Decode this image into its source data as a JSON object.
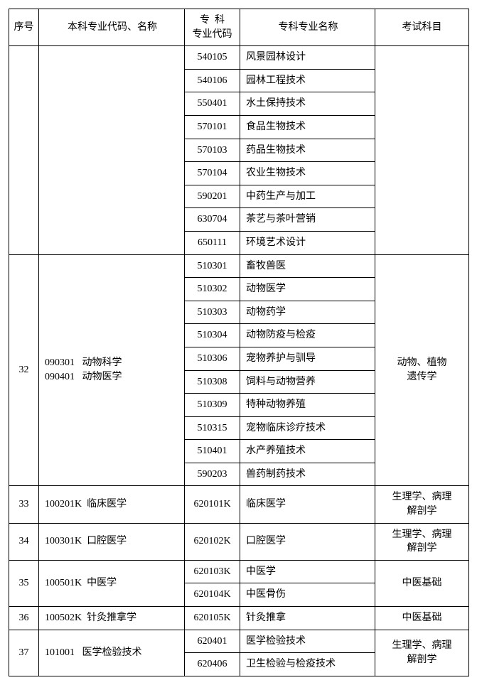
{
  "headers": {
    "seq": "序号",
    "major": "本科专业代码、名称",
    "code": "专  科\n专业代码",
    "name": "专科专业名称",
    "exam": "考试科目"
  },
  "group_top": {
    "rows": [
      {
        "code": "540105",
        "name": "风景园林设计"
      },
      {
        "code": "540106",
        "name": "园林工程技术"
      },
      {
        "code": "550401",
        "name": "水土保持技术"
      },
      {
        "code": "570101",
        "name": "食品生物技术"
      },
      {
        "code": "570103",
        "name": "药品生物技术"
      },
      {
        "code": "570104",
        "name": "农业生物技术"
      },
      {
        "code": "590201",
        "name": "中药生产与加工"
      },
      {
        "code": "630704",
        "name": "茶艺与茶叶营销"
      },
      {
        "code": "650111",
        "name": "环境艺术设计"
      }
    ]
  },
  "group32": {
    "seq": "32",
    "major_line1": "090301   动物科学",
    "major_line2": "090401   动物医学",
    "exam": "动物、植物\n遗传学",
    "rows": [
      {
        "code": "510301",
        "name": "畜牧兽医"
      },
      {
        "code": "510302",
        "name": "动物医学"
      },
      {
        "code": "510303",
        "name": "动物药学"
      },
      {
        "code": "510304",
        "name": "动物防疫与检疫"
      },
      {
        "code": "510306",
        "name": "宠物养护与驯导"
      },
      {
        "code": "510308",
        "name": "饲料与动物营养"
      },
      {
        "code": "510309",
        "name": "特种动物养殖"
      },
      {
        "code": "510315",
        "name": "宠物临床诊疗技术"
      },
      {
        "code": "510401",
        "name": "水产养殖技术"
      },
      {
        "code": "590203",
        "name": "兽药制药技术"
      }
    ]
  },
  "group33": {
    "seq": "33",
    "major": "100201K  临床医学",
    "exam": "生理学、病理\n解剖学",
    "rows": [
      {
        "code": "620101K",
        "name": "临床医学"
      }
    ]
  },
  "group34": {
    "seq": "34",
    "major": "100301K  口腔医学",
    "exam": "生理学、病理\n解剖学",
    "rows": [
      {
        "code": "620102K",
        "name": "口腔医学"
      }
    ]
  },
  "group35": {
    "seq": "35",
    "major": "100501K  中医学",
    "exam": "中医基础",
    "rows": [
      {
        "code": "620103K",
        "name": "中医学"
      },
      {
        "code": "620104K",
        "name": "中医骨伤"
      }
    ]
  },
  "group36": {
    "seq": "36",
    "major": "100502K  针灸推拿学",
    "exam": "中医基础",
    "rows": [
      {
        "code": "620105K",
        "name": "针灸推拿"
      }
    ]
  },
  "group37": {
    "seq": "37",
    "major": "101001   医学检验技术",
    "exam": "生理学、病理\n解剖学",
    "rows": [
      {
        "code": "620401",
        "name": "医学检验技术"
      },
      {
        "code": "620406",
        "name": "卫生检验与检疫技术"
      }
    ]
  }
}
